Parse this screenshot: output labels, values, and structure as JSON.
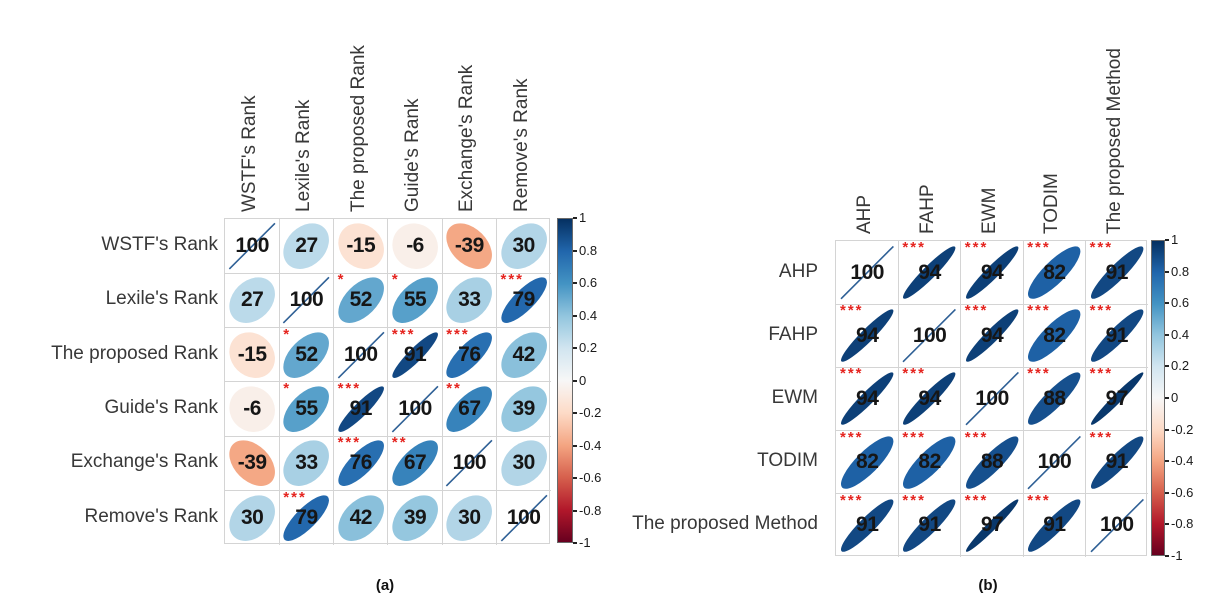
{
  "figure": {
    "captions": {
      "a": "(a)",
      "b": "(b)"
    }
  },
  "style": {
    "colorscale_rdbu": [
      "#67001F",
      "#B2182B",
      "#D6604D",
      "#F4A582",
      "#FDDBC7",
      "#F7F7F7",
      "#D1E5F0",
      "#92C5DE",
      "#4393C3",
      "#2166AC",
      "#053061"
    ],
    "star_color": "#e5241f",
    "number_color": "#161616",
    "grid_color": "#d4d4d4",
    "diag_line_color": "#2f6096",
    "label_color": "#383838"
  },
  "chart_data": [
    {
      "type": "heatmap",
      "subtype": "correlation-ellipse-matrix",
      "panel": "a",
      "caption": "(a)",
      "variables": [
        "WSTF's Rank",
        "Lexile's Rank",
        "The proposed Rank",
        "Guide's Rank",
        "Exchange's Rank",
        "Remove's Rank"
      ],
      "values_x100": [
        [
          100,
          27,
          -15,
          -6,
          -39,
          30
        ],
        [
          27,
          100,
          52,
          55,
          33,
          79
        ],
        [
          -15,
          52,
          100,
          91,
          76,
          42
        ],
        [
          -6,
          55,
          91,
          100,
          67,
          39
        ],
        [
          -39,
          33,
          76,
          67,
          100,
          30
        ],
        [
          30,
          79,
          42,
          39,
          30,
          100
        ]
      ],
      "significance": [
        [
          "",
          "",
          "",
          "",
          "",
          ""
        ],
        [
          "",
          "",
          "*",
          "*",
          "",
          "***"
        ],
        [
          "",
          "*",
          "",
          "***",
          "***",
          ""
        ],
        [
          "",
          "*",
          "***",
          "",
          "**",
          ""
        ],
        [
          "",
          "",
          "***",
          "**",
          "",
          ""
        ],
        [
          "",
          "***",
          "",
          "",
          "",
          ""
        ]
      ],
      "colorbar": {
        "range": [
          -1,
          1
        ],
        "ticks": [
          "1",
          "0.8",
          "0.6",
          "0.4",
          "0.2",
          "0",
          "-0.2",
          "-0.4",
          "-0.6",
          "-0.8",
          "-1"
        ]
      }
    },
    {
      "type": "heatmap",
      "subtype": "correlation-ellipse-matrix",
      "panel": "b",
      "caption": "(b)",
      "variables": [
        "AHP",
        "FAHP",
        "EWM",
        "TODIM",
        "The proposed Method"
      ],
      "values_x100": [
        [
          100,
          94,
          94,
          82,
          91
        ],
        [
          94,
          100,
          94,
          82,
          91
        ],
        [
          94,
          94,
          100,
          88,
          97
        ],
        [
          82,
          82,
          88,
          100,
          91
        ],
        [
          91,
          91,
          97,
          91,
          100
        ]
      ],
      "significance": [
        [
          "",
          "***",
          "***",
          "***",
          "***"
        ],
        [
          "***",
          "",
          "***",
          "***",
          "***"
        ],
        [
          "***",
          "***",
          "",
          "***",
          "***"
        ],
        [
          "***",
          "***",
          "***",
          "",
          "***"
        ],
        [
          "***",
          "***",
          "***",
          "***",
          ""
        ]
      ],
      "colorbar": {
        "range": [
          -1,
          1
        ],
        "ticks": [
          "1",
          "0.8",
          "0.6",
          "0.4",
          "0.2",
          "0",
          "-0.2",
          "-0.4",
          "-0.6",
          "-0.8",
          "-1"
        ]
      }
    }
  ]
}
